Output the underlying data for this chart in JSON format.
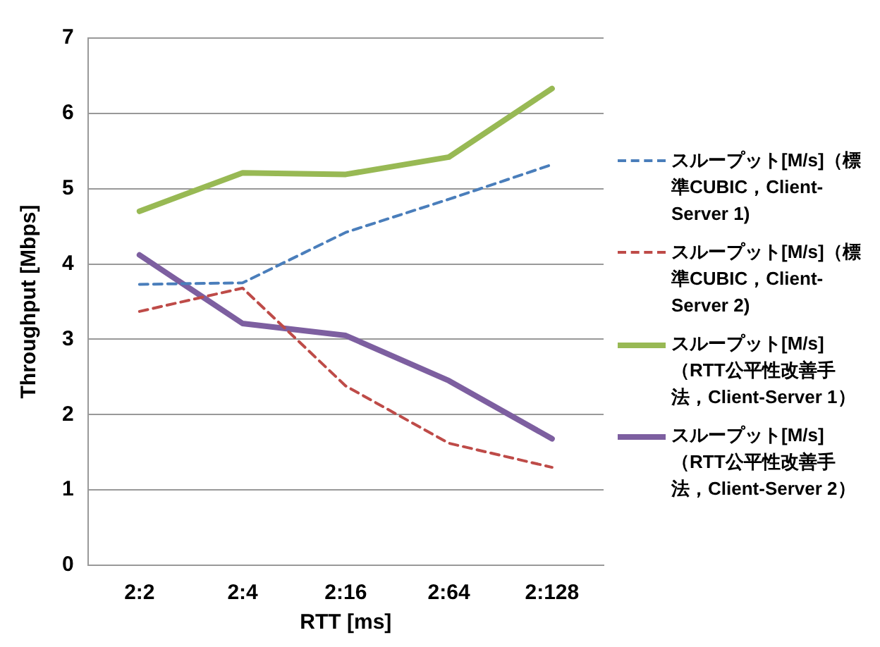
{
  "chart_data": {
    "type": "line",
    "xlabel": "RTT [ms]",
    "ylabel": "Throughput [Mbps]",
    "categories": [
      "2:2",
      "2:4",
      "2:16",
      "2:64",
      "2:128"
    ],
    "series": [
      {
        "name": "スループット[M/s]（標準CUBIC，Client-Server 1)",
        "color": "#4a7ebb",
        "line_style": "dashed",
        "values": [
          3.73,
          3.75,
          4.42,
          4.86,
          5.32
        ]
      },
      {
        "name": "スループット[M/s]（標準CUBIC，Client-Server 2)",
        "color": "#be4b48",
        "line_style": "dashed",
        "values": [
          3.37,
          3.68,
          2.38,
          1.62,
          1.3
        ]
      },
      {
        "name": "スループット[M/s]（RTT公平性改善手法，Client-Server 1）",
        "color": "#98b954",
        "line_style": "solid",
        "values": [
          4.7,
          5.21,
          5.19,
          5.42,
          6.33
        ]
      },
      {
        "name": "スループット[M/s]（RTT公平性改善手法，Client-Server 2）",
        "color": "#7d5fa0",
        "line_style": "solid",
        "values": [
          4.12,
          3.21,
          3.05,
          2.45,
          1.68
        ]
      }
    ],
    "ylim": [
      0,
      7
    ],
    "yticks": [
      0,
      1,
      2,
      3,
      4,
      5,
      6,
      7
    ],
    "grid": "y",
    "legend": "right",
    "marker": "none"
  }
}
